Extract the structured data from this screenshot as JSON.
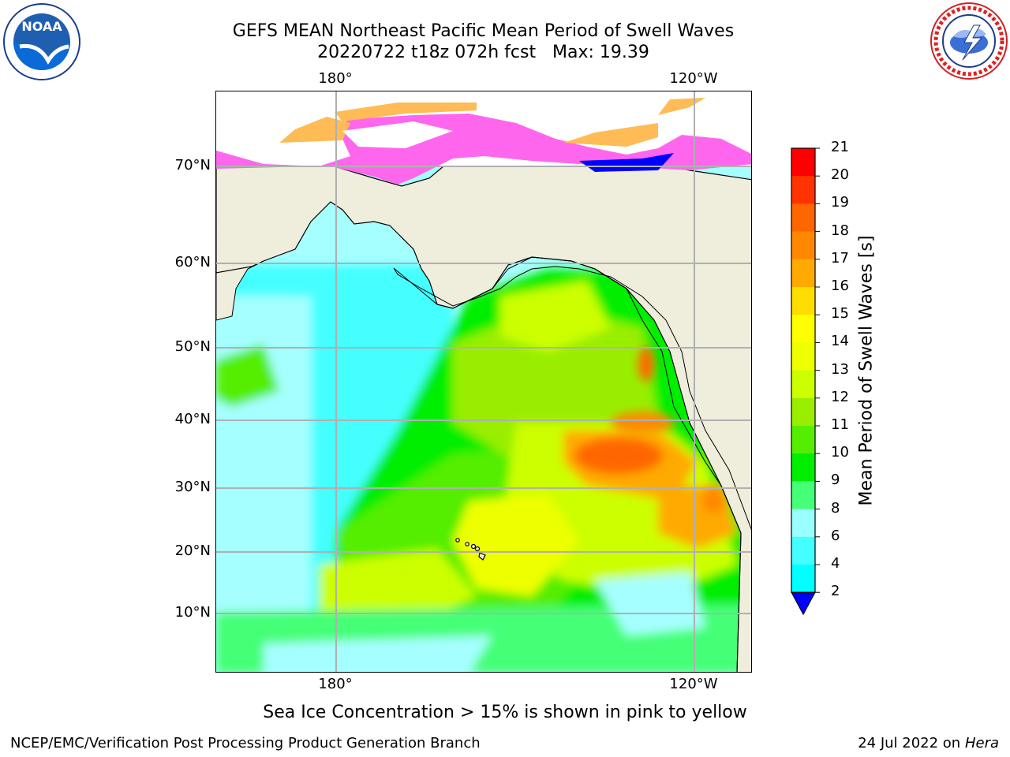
{
  "title": {
    "line1": "GEFS MEAN Northeast Pacific Mean Period of Swell Waves",
    "line2": "20220722 t18z 072h fcst   Max: 19.39"
  },
  "axes": {
    "lon_labels": [
      "180°",
      "120°W"
    ],
    "lat_labels": [
      "70°N",
      "60°N",
      "50°N",
      "40°N",
      "30°N",
      "20°N",
      "10°N"
    ]
  },
  "colorbar": {
    "label": "Mean Period of Swell Waves [s]",
    "ticks": [
      "21",
      "20",
      "19",
      "18",
      "17",
      "16",
      "15",
      "14",
      "13",
      "12",
      "11",
      "10",
      "9",
      "8",
      "6",
      "4",
      "2"
    ],
    "colors": [
      "#ff0000",
      "#ff3300",
      "#ff6600",
      "#ff8800",
      "#ffaa00",
      "#ffdd00",
      "#ffff00",
      "#eeff00",
      "#ccff00",
      "#99ee00",
      "#55ee00",
      "#00ee00",
      "#44ff77",
      "#99ffff",
      "#44ffff",
      "#00ffff",
      "#00ddff",
      "#0077ff"
    ],
    "underflow_color": "#0000ff"
  },
  "footnote": "Sea Ice Concentration > 15% is shown in pink to yellow",
  "credit": "NCEP/EMC/Verification Post Processing Product Generation Branch",
  "date": "24 Jul 2022 on",
  "host": "Hera",
  "logos": {
    "left": {
      "icon": "noaa-logo-icon",
      "text": "NOAA"
    },
    "right": {
      "icon": "nws-logo-icon"
    }
  },
  "colors": {
    "land": "#efeddc",
    "ice_pink": "#ff66ee",
    "ice_orange": "#ffbb55",
    "ice_blue": "#0000ff",
    "grid": "#b0b0b0"
  }
}
